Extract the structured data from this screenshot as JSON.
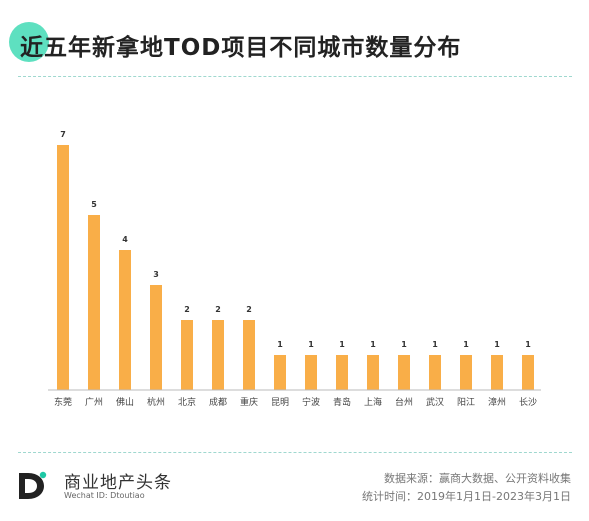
{
  "header": {
    "title": "近五年新拿地TOD项目不同城市数量分布"
  },
  "chart_data": {
    "type": "bar",
    "title": "近五年新拿地TOD项目不同城市数量分布",
    "categories": [
      "东莞",
      "广州",
      "佛山",
      "杭州",
      "北京",
      "成都",
      "重庆",
      "昆明",
      "宁波",
      "青岛",
      "上海",
      "台州",
      "武汉",
      "阳江",
      "漳州",
      "长沙"
    ],
    "values": [
      7,
      5,
      4,
      3,
      2,
      2,
      2,
      1,
      1,
      1,
      1,
      1,
      1,
      1,
      1,
      1
    ],
    "ylim": [
      0,
      7
    ],
    "grid": false,
    "bar_color": "#f9ae48",
    "axis_color": "#bbbbbb"
  },
  "footer": {
    "brand": "商业地产头条",
    "brand_sub": "Wechat ID: Dtoutiao",
    "source": "数据来源：赢商大数据、公开资料收集",
    "period": "统计时间：2019年1月1日-2023年3月1日",
    "accent_color": "#1ec8a5"
  }
}
